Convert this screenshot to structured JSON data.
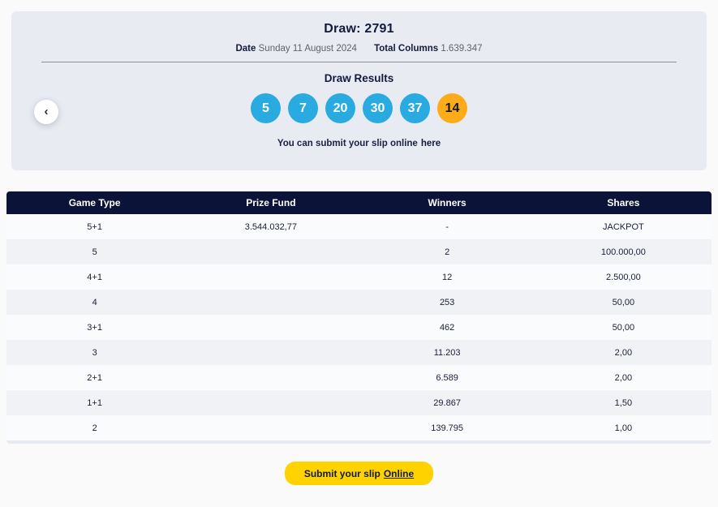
{
  "draw_panel": {
    "title": "Draw: 2791",
    "date_label": "Date",
    "date_value": "Sunday 11 August 2024",
    "total_columns_label": "Total Columns",
    "total_columns_value": "1.639.347",
    "results_heading": "Draw Results",
    "balls": [
      {
        "value": "5",
        "color": "blue"
      },
      {
        "value": "7",
        "color": "blue"
      },
      {
        "value": "20",
        "color": "blue"
      },
      {
        "value": "30",
        "color": "blue"
      },
      {
        "value": "37",
        "color": "blue"
      },
      {
        "value": "14",
        "color": "orange"
      }
    ],
    "submit_text": "You can submit your slip online",
    "submit_link_text": "here",
    "prev_button_icon": "chevron-left"
  },
  "table": {
    "headers": [
      "Game Type",
      "Prize Fund",
      "Winners",
      "Shares"
    ],
    "rows": [
      [
        "5+1",
        "3.544.032,77",
        "-",
        "JACKPOT"
      ],
      [
        "5",
        "",
        "2",
        "100.000,00"
      ],
      [
        "4+1",
        "",
        "12",
        "2.500,00"
      ],
      [
        "4",
        "",
        "253",
        "50,00"
      ],
      [
        "3+1",
        "",
        "462",
        "50,00"
      ],
      [
        "3",
        "",
        "11.203",
        "2,00"
      ],
      [
        "2+1",
        "",
        "6.589",
        "2,00"
      ],
      [
        "1+1",
        "",
        "29.867",
        "1,50"
      ],
      [
        "2",
        "",
        "139.795",
        "1,00"
      ]
    ]
  },
  "footer": {
    "button_text": "Submit your slip",
    "button_link_text": "Online"
  },
  "colors": {
    "page_bg": "#fafafa",
    "panel_bg": "#e9ebf3",
    "text_navy": "#131b3a",
    "muted_text": "#5f6368",
    "ball_blue": "#29abe2",
    "ball_orange": "#fbac18",
    "ball_orange_text": "#15151c",
    "table_header_bg": "#0b1438",
    "row_alt_bg": "#f0f2f6",
    "button_yellow": "#ffd200"
  }
}
